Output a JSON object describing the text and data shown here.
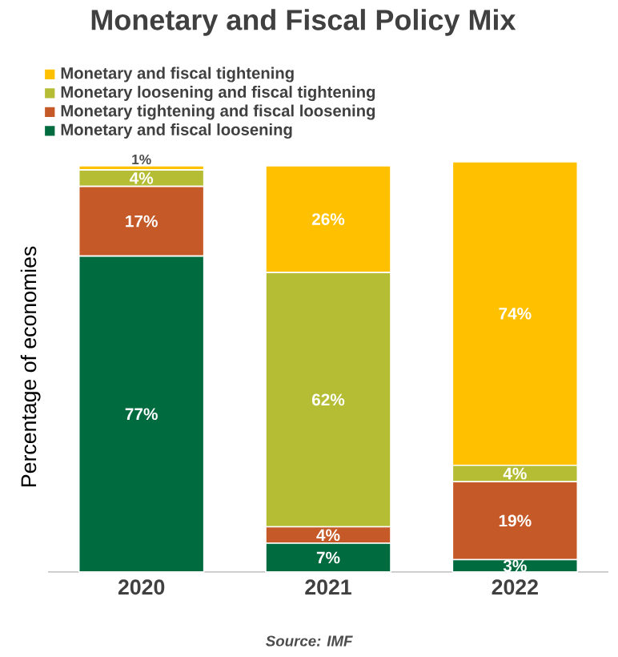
{
  "chart_data": {
    "type": "bar",
    "stacked": true,
    "title": "Monetary and Fiscal Policy Mix",
    "ylabel": "Percentage of economies",
    "categories": [
      "2020",
      "2021",
      "2022"
    ],
    "series": [
      {
        "name": "Monetary and fiscal loosening",
        "color": "#006b3f",
        "values": [
          77,
          7,
          3
        ],
        "value_labels": [
          "77%",
          "7%",
          "3%"
        ]
      },
      {
        "name": "Monetary tightening and fiscal loosening",
        "color": "#c55a28",
        "values": [
          17,
          4,
          19
        ],
        "value_labels": [
          "17%",
          "4%",
          "19%"
        ]
      },
      {
        "name": "Monetary loosening and fiscal tightening",
        "color": "#b5bd35",
        "values": [
          4,
          62,
          4
        ],
        "value_labels": [
          "4%",
          "62%",
          "4%"
        ]
      },
      {
        "name": "Monetary and fiscal tightening",
        "color": "#ffc000",
        "values": [
          1,
          26,
          74
        ],
        "value_labels": [
          "1%",
          "26%",
          "74%"
        ]
      }
    ],
    "ylim": [
      0,
      100
    ],
    "tick_labels": "x",
    "legend": "top",
    "annotations": [
      "Source: IMF"
    ]
  }
}
